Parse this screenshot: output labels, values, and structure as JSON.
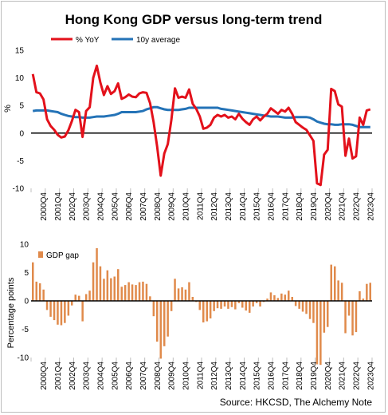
{
  "title": "Hong Kong GDP versus long-term trend",
  "source": "Source: HKCSD, The Alchemy Note",
  "colors": {
    "yoy": "#e3111b",
    "avg": "#2473b7",
    "gap": "#e08a4b",
    "axis": "#000000",
    "tick": "#bfbfbf"
  },
  "x_tick_labels": [
    "2000Q4",
    "2001Q4",
    "2002Q4",
    "2003Q4",
    "2004Q4",
    "2005Q4",
    "2006Q4",
    "2007Q4",
    "2008Q4",
    "2009Q4",
    "2010Q4",
    "2011Q4",
    "2012Q4",
    "2013Q4",
    "2014Q4",
    "2015Q4",
    "2016Q4",
    "2017Q4",
    "2018Q4",
    "2019Q4",
    "2020Q4",
    "2021Q4",
    "2022Q4",
    "2023Q4"
  ],
  "chart_data": [
    {
      "type": "line",
      "title": "Hong Kong GDP versus long-term trend",
      "ylabel": "%",
      "ylim": [
        -10,
        15
      ],
      "yticks": [
        -10,
        -5,
        0,
        5,
        10,
        15
      ],
      "x_start": "2000Q1",
      "x_end": "2023Q4",
      "legend_position": "top",
      "series": [
        {
          "name": "% YoY",
          "values": [
            10.7,
            7.4,
            7.2,
            6.1,
            2.5,
            1.3,
            0.6,
            -0.3,
            -0.8,
            -0.6,
            0.5,
            2.2,
            4.2,
            3.8,
            -0.7,
            4.0,
            4.7,
            10.0,
            12.2,
            9.2,
            6.9,
            8.5,
            7.1,
            7.6,
            9.0,
            6.2,
            6.5,
            7.0,
            6.6,
            6.5,
            7.2,
            7.4,
            7.3,
            5.4,
            2.0,
            -2.5,
            -7.7,
            -3.7,
            -2.0,
            2.4,
            8.1,
            6.4,
            6.6,
            6.4,
            7.9,
            5.3,
            4.4,
            3.0,
            0.8,
            1.0,
            1.5,
            2.8,
            3.3,
            3.0,
            3.3,
            2.8,
            3.0,
            2.5,
            3.5,
            2.6,
            2.0,
            1.5,
            2.5,
            3.0,
            2.3,
            3.0,
            3.5,
            4.5,
            4.0,
            3.5,
            4.2,
            3.9,
            4.6,
            3.5,
            2.0,
            1.5,
            1.0,
            0.6,
            -0.4,
            -1.4,
            -9.1,
            -9.4,
            -3.9,
            -3.0,
            8.0,
            7.6,
            5.2,
            4.8,
            -4.1,
            -1.0,
            -4.6,
            -4.2,
            2.8,
            1.5,
            4.1,
            4.3
          ]
        },
        {
          "name": "10y average",
          "values": [
            4.0,
            4.1,
            4.1,
            4.1,
            4.1,
            4.0,
            3.9,
            3.8,
            3.5,
            3.3,
            3.1,
            3.0,
            2.9,
            2.9,
            2.8,
            2.8,
            2.8,
            2.9,
            3.0,
            3.0,
            3.0,
            3.1,
            3.2,
            3.3,
            3.5,
            3.8,
            3.8,
            3.8,
            3.8,
            3.8,
            3.9,
            4.0,
            4.3,
            4.5,
            4.7,
            4.7,
            4.5,
            4.3,
            4.2,
            4.2,
            4.2,
            4.2,
            4.3,
            4.4,
            4.6,
            4.6,
            4.6,
            4.6,
            4.6,
            4.6,
            4.6,
            4.6,
            4.6,
            4.4,
            4.3,
            4.2,
            4.1,
            4.0,
            3.9,
            3.8,
            3.7,
            3.6,
            3.5,
            3.4,
            3.3,
            3.2,
            3.1,
            3.0,
            3.0,
            3.0,
            2.9,
            2.8,
            2.8,
            2.8,
            2.9,
            2.9,
            2.9,
            2.9,
            2.8,
            2.5,
            2.1,
            1.9,
            1.7,
            1.6,
            1.6,
            1.5,
            1.5,
            1.6,
            1.6,
            1.6,
            1.5,
            1.3,
            1.1,
            1.1,
            1.1,
            1.1
          ]
        }
      ]
    },
    {
      "type": "bar",
      "ylabel": "Percentage points",
      "ylim": [
        -10,
        10
      ],
      "yticks": [
        -10,
        -5,
        0,
        5,
        10
      ],
      "x_start": "2000Q1",
      "x_end": "2023Q4",
      "legend_position": "top-left",
      "series": [
        {
          "name": "GDP gap",
          "values": [
            6.8,
            3.4,
            3.1,
            2.0,
            -1.6,
            -2.8,
            -3.4,
            -4.2,
            -4.3,
            -3.9,
            -2.6,
            -0.8,
            1.1,
            0.9,
            -3.6,
            1.2,
            1.8,
            6.8,
            9.3,
            6.1,
            3.9,
            5.4,
            4.0,
            4.3,
            5.6,
            2.5,
            2.8,
            3.3,
            2.9,
            2.8,
            3.3,
            3.4,
            3.0,
            0.8,
            -2.7,
            -7.2,
            -10.2,
            -8.0,
            -6.3,
            -1.8,
            3.9,
            2.2,
            2.4,
            2.0,
            3.3,
            0.7,
            -0.2,
            -1.6,
            -3.8,
            -3.6,
            -3.1,
            -1.8,
            -1.3,
            -1.4,
            -1.0,
            -1.4,
            -1.1,
            -1.5,
            -0.4,
            -1.2,
            -1.7,
            -2.1,
            -1.0,
            -0.4,
            -1.0,
            -0.2,
            0.4,
            1.5,
            1.0,
            0.5,
            1.3,
            1.1,
            1.8,
            0.7,
            -0.9,
            -1.4,
            -1.9,
            -2.3,
            -3.2,
            -3.9,
            -11.2,
            -11.3,
            -5.6,
            -4.6,
            6.4,
            6.1,
            3.6,
            3.2,
            -5.7,
            -2.6,
            -6.1,
            -5.5,
            1.7,
            0.4,
            3.0,
            3.2
          ]
        }
      ]
    }
  ]
}
